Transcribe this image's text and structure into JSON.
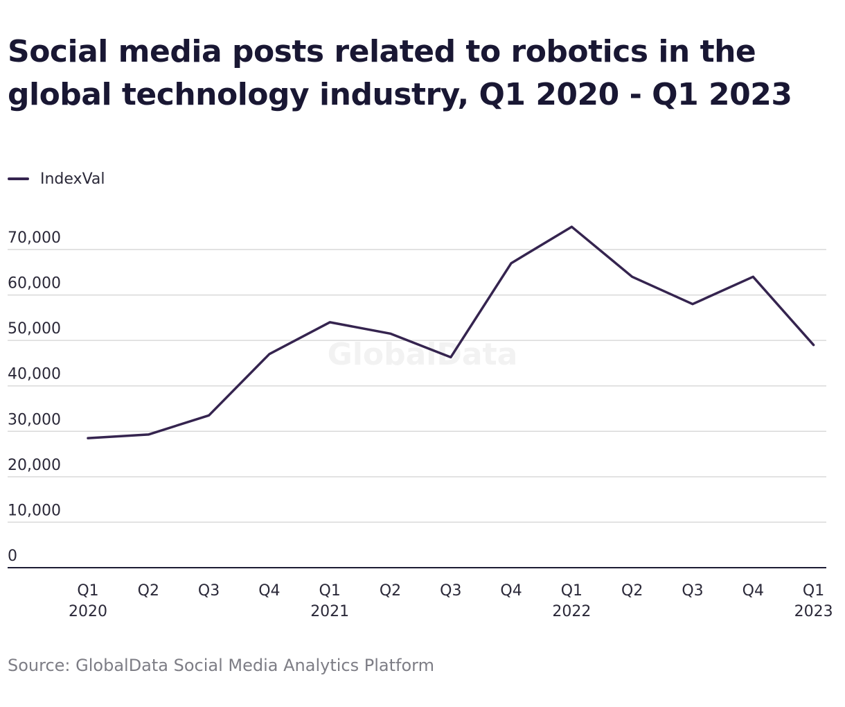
{
  "title": "Social media posts related to robotics in the global technology industry, Q1 2020 - Q1 2023",
  "legend": {
    "label": "IndexVal"
  },
  "source": "Source: GlobalData Social Media Analytics Platform",
  "watermark": "GlobalData",
  "colors": {
    "line": "#35244f",
    "grid": "#d9d9d9",
    "axis": "#1c1b33",
    "tick_text": "#2a2838",
    "watermark": "#f2f2f2"
  },
  "chart_data": {
    "type": "line",
    "title": "Social media posts related to robotics in the global technology industry, Q1 2020 - Q1 2023",
    "xlabel": "",
    "ylabel": "",
    "grid": true,
    "legend_position": "top-left",
    "ylim": [
      0,
      70000
    ],
    "yticks": [
      0,
      10000,
      20000,
      30000,
      40000,
      50000,
      60000,
      70000
    ],
    "ytick_labels": [
      "0",
      "10,000",
      "20,000",
      "30,000",
      "40,000",
      "50,000",
      "60,000",
      "70,000"
    ],
    "categories": [
      [
        "Q1",
        "2020"
      ],
      [
        "Q2",
        ""
      ],
      [
        "Q3",
        ""
      ],
      [
        "Q4",
        ""
      ],
      [
        "Q1",
        "2021"
      ],
      [
        "Q2",
        ""
      ],
      [
        "Q3",
        ""
      ],
      [
        "Q4",
        ""
      ],
      [
        "Q1",
        "2022"
      ],
      [
        "Q2",
        ""
      ],
      [
        "Q3",
        ""
      ],
      [
        "Q4",
        ""
      ],
      [
        "Q1",
        "2023"
      ]
    ],
    "series": [
      {
        "name": "IndexVal",
        "values": [
          28500,
          29300,
          33500,
          47000,
          54000,
          51500,
          46300,
          67000,
          75000,
          64000,
          58000,
          64000,
          49000
        ]
      }
    ]
  }
}
